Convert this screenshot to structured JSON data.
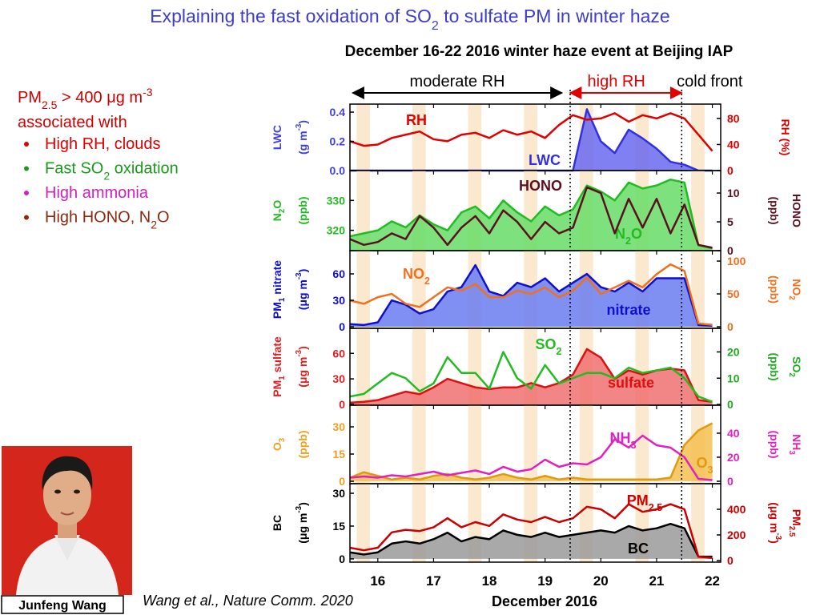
{
  "slide": {
    "title": [
      {
        "text": "Explaining the fast oxidation of SO"
      },
      {
        "sub": "2"
      },
      {
        "text": " to sulfate PM in winter haze"
      }
    ],
    "subtitle": "December 16-22 2016 winter haze event at Beijing IAP",
    "lead": [
      [
        {
          "text": "PM"
        },
        {
          "sub": "2.5"
        },
        {
          "text": " > 400 μg m"
        },
        {
          "sup": "-3"
        }
      ],
      [
        {
          "text": "associated with"
        }
      ]
    ],
    "bullets": [
      {
        "color": "#e00000",
        "text": [
          {
            "text": "High RH, clouds"
          }
        ]
      },
      {
        "color": "#1a9a1a",
        "text": [
          {
            "text": "Fast SO"
          },
          {
            "sub": "2"
          },
          {
            "text": " oxidation"
          }
        ]
      },
      {
        "color": "#d020c0",
        "text": [
          {
            "text": "High ammonia"
          }
        ]
      },
      {
        "color": "#8a2a10",
        "text": [
          {
            "text": "High HONO, N"
          },
          {
            "sub": "2"
          },
          {
            "text": "O"
          }
        ]
      }
    ],
    "name": "Junfeng Wang",
    "citation": "Wang et al., Nature Comm. 2020"
  },
  "chart_data": [
    {
      "type": "line",
      "x": [
        15.5,
        15.75,
        16,
        16.25,
        16.5,
        16.75,
        17,
        17.25,
        17.5,
        17.75,
        18,
        18.25,
        18.5,
        18.75,
        19,
        19.25,
        19.5,
        19.75,
        20,
        20.25,
        20.5,
        20.75,
        21,
        21.25,
        21.5,
        21.75,
        22
      ],
      "xlim": [
        15.5,
        22.15
      ],
      "vlines": [
        19.45,
        21.45
      ],
      "annotations": [
        {
          "text": "moderate RH",
          "from": 15.55,
          "to": 19.3,
          "color": "#000000"
        },
        {
          "text": "high RH",
          "from": 19.45,
          "to": 21.45,
          "color": "#e00000"
        },
        {
          "text": "cold front",
          "at": 21.45,
          "color": "#000000"
        }
      ],
      "ylim": [
        0,
        0.455
      ],
      "yticks": [
        {
          "value": 0,
          "label": "0.0"
        },
        0.2,
        0.4
      ],
      "ycolor": "#4040e0",
      "y2lim": [
        0,
        102
      ],
      "y2ticks": [
        0,
        40,
        80
      ],
      "y2color": "#e00000",
      "ylabel": [
        [
          {
            "text": "LWC"
          }
        ],
        [
          {
            "text": "(g m"
          },
          {
            "sup": "-3"
          },
          {
            "text": ")"
          }
        ]
      ],
      "y2label": [
        [
          {
            "text": "RH (%)"
          }
        ]
      ],
      "series": [
        {
          "name": [
            {
              "text": "LWC"
            }
          ],
          "color": "#3030e0",
          "fill": "#6a6af0",
          "axis": "y",
          "values": [
            0,
            0,
            0,
            0,
            0,
            0,
            0,
            0,
            0,
            0,
            0,
            0,
            0,
            0,
            0,
            0,
            0,
            0.42,
            0.2,
            0.12,
            0.28,
            0.22,
            0.15,
            0.06,
            0.04,
            0,
            0
          ]
        },
        {
          "name": [
            {
              "text": "RH"
            }
          ],
          "color": "#e00000",
          "axis": "y2",
          "values": [
            45,
            38,
            40,
            50,
            55,
            60,
            48,
            45,
            55,
            58,
            50,
            62,
            55,
            60,
            50,
            70,
            85,
            78,
            80,
            88,
            75,
            85,
            80,
            88,
            80,
            55,
            30
          ]
        }
      ]
    },
    {
      "type": "line",
      "x": [
        15.5,
        15.75,
        16,
        16.25,
        16.5,
        16.75,
        17,
        17.25,
        17.5,
        17.75,
        18,
        18.25,
        18.5,
        18.75,
        19,
        19.25,
        19.5,
        19.75,
        20,
        20.25,
        20.5,
        20.75,
        21,
        21.25,
        21.5,
        21.75,
        22
      ],
      "xlim": [
        15.5,
        22.15
      ],
      "ylim": [
        313.2,
        340
      ],
      "yticks": [
        320,
        330
      ],
      "ycolor": "#22bb22",
      "y2lim": [
        0,
        13.9
      ],
      "y2ticks": [
        0,
        5,
        10
      ],
      "y2color": "#5a1020",
      "ylabel": [
        [
          {
            "text": "N"
          },
          {
            "sub": "2"
          },
          {
            "text": "O"
          }
        ],
        [
          {
            "text": "(ppb)"
          }
        ]
      ],
      "y2label": [
        [
          {
            "text": "HONO"
          }
        ],
        [
          {
            "text": "(ppb)"
          }
        ]
      ],
      "series": [
        {
          "name": [
            {
              "text": "N"
            },
            {
              "sub": "2"
            },
            {
              "text": "O"
            }
          ],
          "color": "#22bb22",
          "fill": "#66dd66",
          "axis": "y",
          "values": [
            318,
            319,
            320,
            323,
            321,
            325,
            322,
            320,
            326,
            328,
            324,
            330,
            326,
            323,
            328,
            325,
            327,
            335,
            333,
            330,
            336,
            334,
            335,
            337,
            336,
            315,
            314
          ]
        },
        {
          "name": [
            {
              "text": "HONO"
            }
          ],
          "color": "#5a1020",
          "axis": "y2",
          "values": [
            2,
            1,
            1.5,
            3,
            2,
            6,
            4,
            1,
            4,
            6,
            3,
            7,
            5,
            2,
            5,
            3,
            4,
            11,
            10,
            3,
            9,
            4,
            9,
            3,
            8,
            1,
            0.5
          ]
        }
      ]
    },
    {
      "type": "line",
      "x": [
        15.5,
        15.75,
        16,
        16.25,
        16.5,
        16.75,
        17,
        17.25,
        17.5,
        17.75,
        18,
        18.25,
        18.5,
        18.75,
        19,
        19.25,
        19.5,
        19.75,
        20,
        20.25,
        20.5,
        20.75,
        21,
        21.25,
        21.5,
        21.75,
        22
      ],
      "xlim": [
        15.5,
        22.15
      ],
      "ylim": [
        -1.8,
        86.4
      ],
      "yticks": [
        0,
        30,
        60
      ],
      "ycolor": "#1010cc",
      "y2lim": [
        -2.4,
        115.9
      ],
      "y2ticks": [
        0,
        50,
        100
      ],
      "y2color": "#f07020",
      "ylabel": [
        [
          {
            "text": "PM"
          },
          {
            "sub": "1"
          },
          {
            "text": " nitrate"
          }
        ],
        [
          {
            "text": "(μg m"
          },
          {
            "sup": "-3"
          },
          {
            "text": ")"
          }
        ]
      ],
      "y2label": [
        [
          {
            "text": "NO"
          },
          {
            "sub": "2"
          }
        ],
        [
          {
            "text": "(ppb)"
          }
        ]
      ],
      "series": [
        {
          "name": [
            {
              "text": "nitrate"
            }
          ],
          "color": "#1010cc",
          "fill": "#6a7cf0",
          "axis": "y",
          "values": [
            3,
            2,
            5,
            30,
            25,
            15,
            20,
            40,
            45,
            70,
            40,
            35,
            50,
            45,
            55,
            40,
            50,
            60,
            45,
            40,
            50,
            40,
            55,
            55,
            55,
            2,
            1
          ]
        },
        {
          "name": [
            {
              "text": "NO"
            },
            {
              "sub": "2"
            }
          ],
          "color": "#f07020",
          "axis": "y2",
          "values": [
            40,
            35,
            45,
            50,
            35,
            30,
            45,
            60,
            55,
            65,
            45,
            45,
            55,
            50,
            60,
            45,
            55,
            75,
            50,
            60,
            70,
            60,
            80,
            95,
            85,
            5,
            3
          ]
        }
      ]
    },
    {
      "type": "line",
      "x": [
        15.5,
        15.75,
        16,
        16.25,
        16.5,
        16.75,
        17,
        17.25,
        17.5,
        17.75,
        18,
        18.25,
        18.5,
        18.75,
        19,
        19.25,
        19.5,
        19.75,
        20,
        20.25,
        20.5,
        20.75,
        21,
        21.25,
        21.5,
        21.75,
        22
      ],
      "xlim": [
        15.5,
        22.15
      ],
      "ylim": [
        -1,
        89.5
      ],
      "yticks": [
        0,
        30,
        60
      ],
      "ycolor": "#e02020",
      "y2lim": [
        -0.3,
        29
      ],
      "y2ticks": [
        0,
        10,
        20
      ],
      "y2color": "#22aa22",
      "ylabel": [
        [
          {
            "text": "PM"
          },
          {
            "sub": "1"
          },
          {
            "text": " sulfate"
          }
        ],
        [
          {
            "text": "(μg m"
          },
          {
            "sup": "-3"
          },
          {
            "text": ")"
          }
        ]
      ],
      "y2label": [
        [
          {
            "text": "SO"
          },
          {
            "sub": "2"
          }
        ],
        [
          {
            "text": "(ppb)"
          }
        ]
      ],
      "series": [
        {
          "name": [
            {
              "text": "sulfate"
            }
          ],
          "color": "#dd1010",
          "fill": "#f07070",
          "axis": "y",
          "values": [
            2,
            3,
            5,
            10,
            15,
            12,
            20,
            30,
            25,
            20,
            18,
            20,
            20,
            25,
            20,
            25,
            35,
            65,
            55,
            30,
            40,
            35,
            40,
            42,
            40,
            5,
            3
          ]
        },
        {
          "name": [
            {
              "text": "SO"
            },
            {
              "sub": "2"
            }
          ],
          "color": "#22bb22",
          "axis": "y2",
          "values": [
            3,
            4,
            8,
            12,
            10,
            5,
            8,
            18,
            12,
            12,
            6,
            20,
            10,
            6,
            15,
            8,
            10,
            12,
            12,
            10,
            14,
            12,
            13,
            14,
            10,
            3,
            1
          ]
        }
      ]
    },
    {
      "type": "line",
      "x": [
        15.5,
        15.75,
        16,
        16.25,
        16.5,
        16.75,
        17,
        17.25,
        17.5,
        17.75,
        18,
        18.25,
        18.5,
        18.75,
        19,
        19.25,
        19.5,
        19.75,
        20,
        20.25,
        20.5,
        20.75,
        21,
        21.25,
        21.5,
        21.75,
        22
      ],
      "xlim": [
        15.5,
        22.15
      ],
      "ylim": [
        -1.3,
        41.9
      ],
      "yticks": [
        0,
        15,
        30
      ],
      "ycolor": "#f0a020",
      "y2lim": [
        -2,
        63.3
      ],
      "y2ticks": [
        0,
        20,
        40
      ],
      "y2color": "#e020c0",
      "ylabel": [
        [
          {
            "text": "O"
          },
          {
            "sub": "3"
          }
        ],
        [
          {
            "text": "(ppb)"
          }
        ]
      ],
      "y2label": [
        [
          {
            "text": "NH"
          },
          {
            "sub": "3"
          }
        ],
        [
          {
            "text": "(ppb)"
          }
        ]
      ],
      "series": [
        {
          "name": [
            {
              "text": "O"
            },
            {
              "sub": "3"
            }
          ],
          "color": "#e09a10",
          "fill": "#f5c050",
          "axis": "y",
          "values": [
            2,
            5,
            3,
            1,
            2,
            1,
            3,
            4,
            2,
            1,
            2,
            4,
            2,
            1,
            3,
            1,
            2,
            1,
            1,
            1,
            1,
            1,
            1,
            2,
            20,
            28,
            32
          ]
        },
        {
          "name": [
            {
              "text": "NH"
            },
            {
              "sub": "3"
            }
          ],
          "color": "#e020c0",
          "axis": "y2",
          "values": [
            3,
            4,
            3,
            5,
            4,
            6,
            8,
            5,
            7,
            9,
            6,
            12,
            8,
            10,
            18,
            12,
            15,
            14,
            20,
            35,
            28,
            38,
            30,
            28,
            20,
            2,
            1
          ]
        }
      ]
    },
    {
      "type": "line",
      "x": [
        15.5,
        15.75,
        16,
        16.25,
        16.5,
        16.75,
        17,
        17.25,
        17.5,
        17.75,
        18,
        18.25,
        18.5,
        18.75,
        19,
        19.25,
        19.5,
        19.75,
        20,
        20.25,
        20.5,
        20.75,
        21,
        21.25,
        21.5,
        21.75,
        22
      ],
      "xlim": [
        15.5,
        22.15
      ],
      "xticks": [
        16,
        17,
        18,
        19,
        20,
        21,
        22
      ],
      "xlabel": "December 2016",
      "ylim": [
        -1.5,
        34.4
      ],
      "yticks": [
        0,
        15,
        30
      ],
      "ycolor": "#000000",
      "y2lim": [
        -12.5,
        600
      ],
      "y2ticks": [
        0,
        200,
        400
      ],
      "y2color": "#cc0000",
      "ylabel": [
        [
          {
            "text": "BC"
          }
        ],
        [
          {
            "text": "(μg m"
          },
          {
            "sup": "-3"
          },
          {
            "text": ")"
          }
        ]
      ],
      "y2label": [
        [
          {
            "text": "PM"
          },
          {
            "sub": "2.5"
          }
        ],
        [
          {
            "text": "(μg m"
          },
          {
            "sup": "-3"
          },
          {
            "text": ")"
          }
        ]
      ],
      "series": [
        {
          "name": [
            {
              "text": "BC"
            }
          ],
          "color": "#000000",
          "fill": "#9a9a9a",
          "axis": "y",
          "values": [
            3,
            2,
            3,
            7,
            8,
            7,
            9,
            12,
            8,
            10,
            9,
            13,
            11,
            10,
            12,
            10,
            11,
            12,
            13,
            12,
            15,
            13,
            14,
            16,
            14,
            1,
            1
          ]
        },
        {
          "name": [
            {
              "text": "PM"
            },
            {
              "sub": "2.5"
            }
          ],
          "color": "#cc0000",
          "axis": "y2",
          "values": [
            100,
            80,
            100,
            220,
            240,
            230,
            260,
            330,
            260,
            300,
            270,
            360,
            320,
            300,
            340,
            300,
            330,
            420,
            400,
            330,
            440,
            380,
            400,
            440,
            400,
            30,
            20
          ]
        }
      ]
    }
  ]
}
